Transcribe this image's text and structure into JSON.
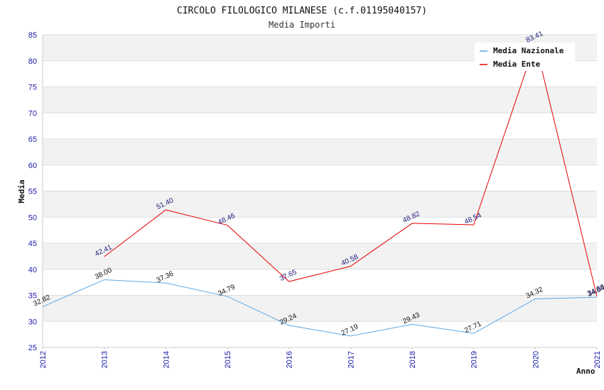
{
  "chart_data": {
    "type": "line",
    "title": "CIRCOLO FILOLOGICO MILANESE (c.f.01195040157)",
    "subtitle": "Media Importi",
    "xlabel": "Anno",
    "ylabel": "Media",
    "ylim": [
      25,
      85
    ],
    "yticks": [
      "25",
      "30",
      "35",
      "40",
      "45",
      "50",
      "55",
      "60",
      "65",
      "70",
      "75",
      "80",
      "85"
    ],
    "x": [
      "2012",
      "2013",
      "2014",
      "2015",
      "2016",
      "2017",
      "2018",
      "2019",
      "2020",
      "2021"
    ],
    "grid": true,
    "legend_position": "top-right",
    "series": [
      {
        "name": "Media Nazionale",
        "color": "#5aa8e6",
        "values": [
          32.82,
          38.0,
          37.36,
          34.79,
          29.24,
          27.19,
          29.43,
          27.71,
          34.32,
          34.64
        ],
        "labels": [
          "32.82",
          "38.00",
          "37.36",
          "34.79",
          "29.24",
          "27.19",
          "29.43",
          "27.71",
          "34.32",
          "34.64"
        ]
      },
      {
        "name": "Media Ente",
        "color": "#e60000",
        "values": [
          null,
          42.41,
          51.4,
          48.46,
          37.65,
          40.58,
          48.82,
          48.54,
          83.41,
          34.8
        ],
        "labels": [
          "",
          "42.41",
          "51.40",
          "48.46",
          "37.65",
          "40.58",
          "48.82",
          "48.54",
          "83.41",
          "34.80"
        ]
      }
    ]
  }
}
